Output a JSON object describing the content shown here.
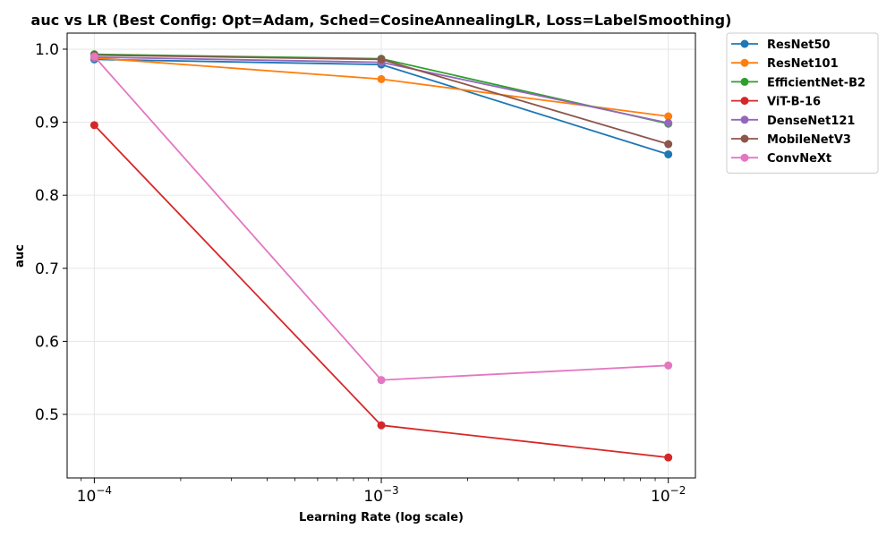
{
  "chart_data": {
    "type": "line",
    "title": "auc vs LR (Best Config: Opt=Adam, Sched=CosineAnnealingLR, Loss=LabelSmoothing)",
    "xlabel": "Learning Rate (log scale)",
    "ylabel": "auc",
    "xscale": "log",
    "x": [
      0.0001,
      0.001,
      0.01
    ],
    "xtick_labels": [
      {
        "base": "10",
        "exp": "−4"
      },
      {
        "base": "10",
        "exp": "−3"
      },
      {
        "base": "10",
        "exp": "−2"
      }
    ],
    "yticks": [
      "0.5",
      "0.6",
      "0.7",
      "0.8",
      "0.9",
      "1.0"
    ],
    "ylim": [
      0.413,
      1.022
    ],
    "grid": true,
    "legend_position": "outside-top-right",
    "series": [
      {
        "name": "ResNet50",
        "color": "#1f77b4",
        "values": [
          0.986,
          0.979,
          0.856
        ]
      },
      {
        "name": "ResNet101",
        "color": "#ff7f0e",
        "values": [
          0.988,
          0.959,
          0.908
        ]
      },
      {
        "name": "EfficientNet-B2",
        "color": "#2ca02c",
        "values": [
          0.993,
          0.987,
          0.898
        ]
      },
      {
        "name": "ViT-B-16",
        "color": "#d62728",
        "values": [
          0.896,
          0.485,
          0.441
        ]
      },
      {
        "name": "DenseNet121",
        "color": "#9467bd",
        "values": [
          0.989,
          0.982,
          0.899
        ]
      },
      {
        "name": "MobileNetV3",
        "color": "#8c564b",
        "values": [
          0.992,
          0.986,
          0.87
        ]
      },
      {
        "name": "ConvNeXt",
        "color": "#e377c2",
        "values": [
          0.99,
          0.547,
          0.567
        ]
      }
    ]
  }
}
